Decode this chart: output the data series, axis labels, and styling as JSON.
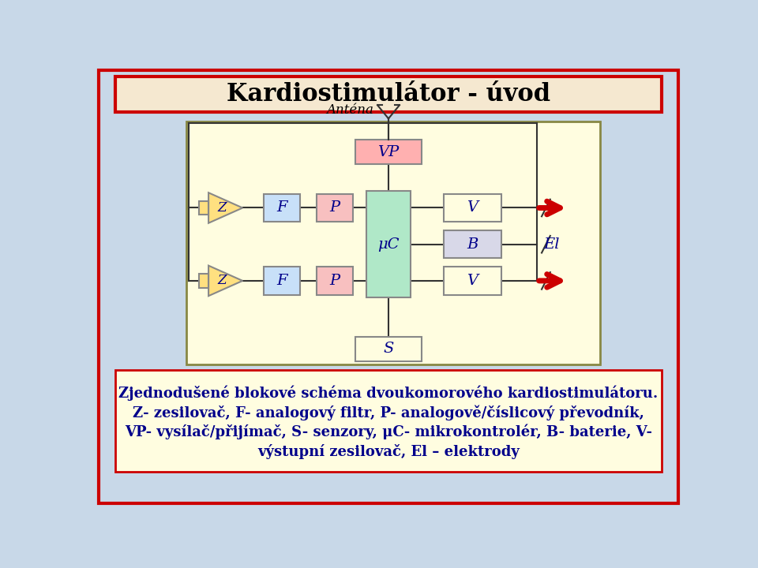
{
  "title_text": "Kardiostimulátor - úvod",
  "bg_color": "#c8d8e8",
  "title_bg": "#f5e8d0",
  "title_border": "#cc0000",
  "text_color": "#00008b",
  "caption_line1": "Zjednodušené blokové schéma dvoukomorového kardiostimulátoru.",
  "caption_line2": "Z- zesilovač, F- analogový filtr, P- analogově/číslicový převodník,",
  "caption_line3": "VP- vysílač/přijímač, S- senzory, μC- mikrokontrolér, B- baterie, V-",
  "caption_line4": "výstupní zesilovač, El – elektrody"
}
